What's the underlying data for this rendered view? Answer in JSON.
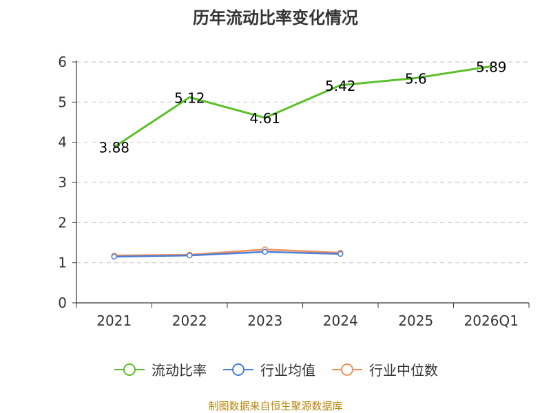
{
  "chart_data": {
    "type": "line",
    "title": "历年流动比率变化情况",
    "categories": [
      "2021",
      "2022",
      "2023",
      "2024",
      "2025",
      "2026Q1"
    ],
    "ylim": [
      0,
      6
    ],
    "yticks": [
      0,
      1,
      2,
      3,
      4,
      5,
      6
    ],
    "grid": true,
    "legend_position": "bottom",
    "series": [
      {
        "name": "流动比率",
        "color": "#5cbf2a",
        "values": [
          3.88,
          5.12,
          4.61,
          5.42,
          5.6,
          5.89
        ],
        "labels": [
          "3.88",
          "5.12",
          "4.61",
          "5.42",
          "5.6",
          "5.89"
        ],
        "show_labels": true
      },
      {
        "name": "行业均值",
        "color": "#4a7ed8",
        "values": [
          1.15,
          1.18,
          1.27,
          1.22,
          null,
          null
        ],
        "show_labels": false
      },
      {
        "name": "行业中位数",
        "color": "#f0905a",
        "values": [
          1.18,
          1.2,
          1.33,
          1.25,
          null,
          null
        ],
        "show_labels": false
      }
    ]
  },
  "source": "制图数据来自恒生聚源数据库"
}
